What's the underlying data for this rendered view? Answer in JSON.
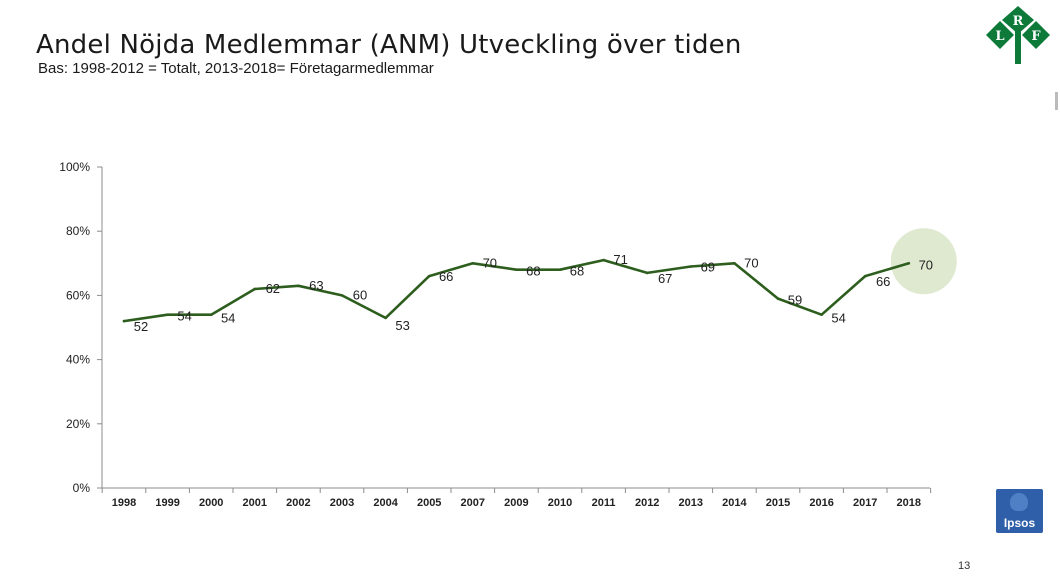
{
  "slide": {
    "title": "Andel Nöjda Medlemmar (ANM) Utveckling över tiden",
    "subtitle": "Bas: 1998-2012 = Totalt, 2013-2018= Företagarmedlemmar",
    "page_number": "13"
  },
  "logos": {
    "lrf": {
      "letters": [
        "R",
        "L",
        "F"
      ],
      "color": "#0e7a3a"
    },
    "ipsos": {
      "text": "Ipsos",
      "color": "#2f5fa8"
    }
  },
  "chart_data": {
    "type": "line",
    "title": "",
    "xlabel": "",
    "ylabel": "",
    "categories": [
      "1998",
      "1999",
      "2000",
      "2001",
      "2002",
      "2003",
      "2004",
      "2005",
      "2007",
      "2009",
      "2010",
      "2011",
      "2012",
      "2013",
      "2014",
      "2015",
      "2016",
      "2017",
      "2018"
    ],
    "series": [
      {
        "values": [
          52,
          54,
          54,
          62,
          63,
          60,
          53,
          66,
          70,
          68,
          68,
          71,
          67,
          69,
          70,
          59,
          54,
          66,
          70
        ],
        "color": "#2d5e1e"
      }
    ],
    "data_labels": [
      "52",
      "54",
      "54",
      "62",
      "63",
      "60",
      "53",
      "66",
      "70",
      "68",
      "68",
      "71",
      "67",
      "69",
      "70",
      "59",
      "54",
      "66",
      "70"
    ],
    "ylim": [
      0,
      100
    ],
    "yticks": [
      "0%",
      "20%",
      "40%",
      "60%",
      "80%",
      "100%"
    ],
    "ytick_values": [
      0,
      20,
      40,
      60,
      80,
      100
    ],
    "grid": false,
    "highlight": {
      "category": "2018",
      "color": "#dfe9cf"
    }
  }
}
